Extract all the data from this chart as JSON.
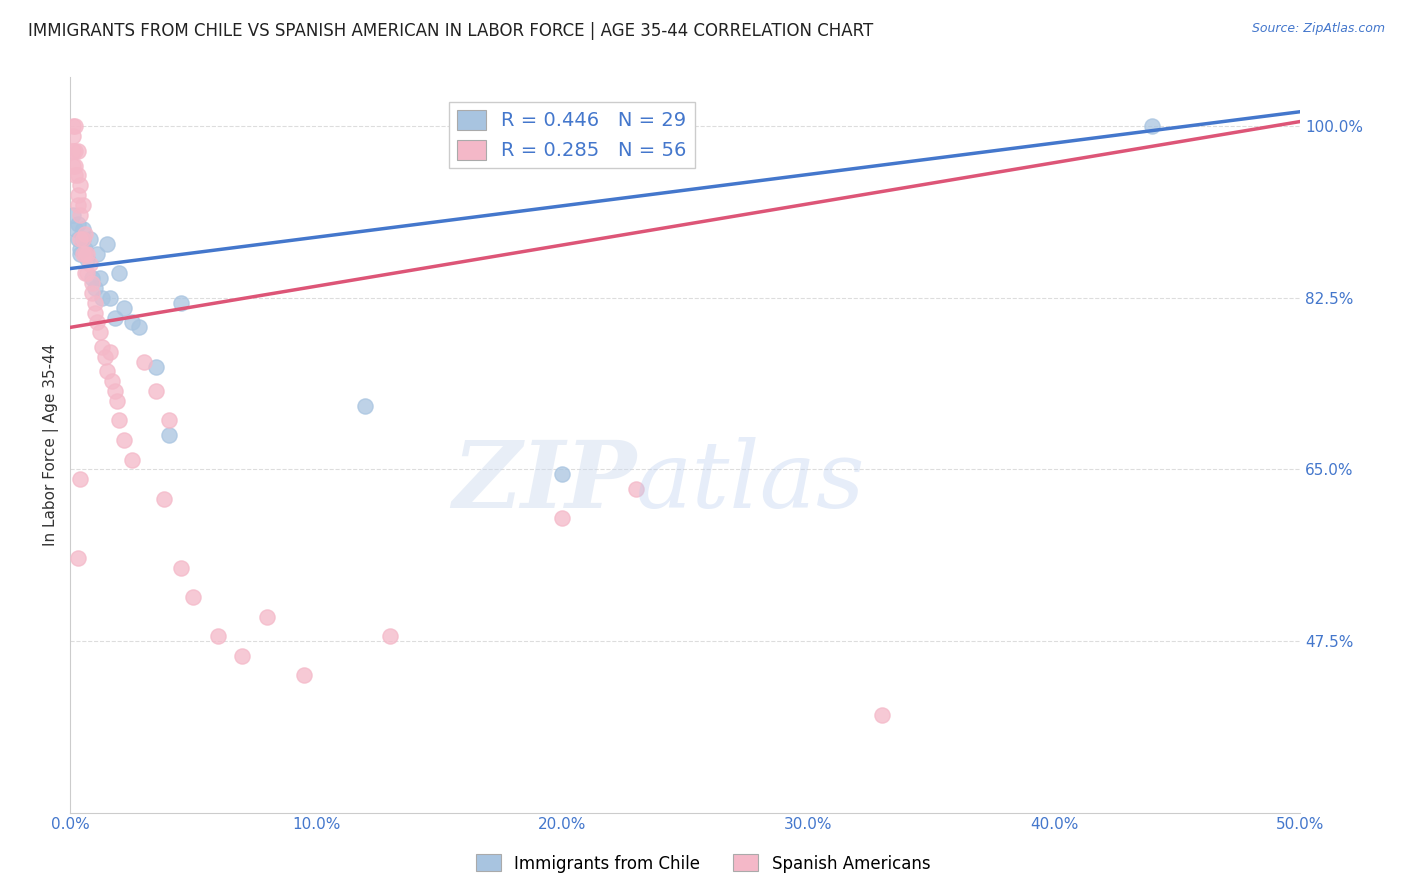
{
  "title": "IMMIGRANTS FROM CHILE VS SPANISH AMERICAN IN LABOR FORCE | AGE 35-44 CORRELATION CHART",
  "source": "Source: ZipAtlas.com",
  "ylabel": "In Labor Force | Age 35-44",
  "xlim": [
    0.0,
    0.5
  ],
  "ylim": [
    0.3,
    1.05
  ],
  "xticks": [
    0.0,
    0.1,
    0.2,
    0.3,
    0.4,
    0.5
  ],
  "xticklabels": [
    "0.0%",
    "10.0%",
    "20.0%",
    "30.0%",
    "40.0%",
    "50.0%"
  ],
  "yticks": [
    0.475,
    0.65,
    0.825,
    1.0
  ],
  "yticklabels": [
    "47.5%",
    "65.0%",
    "82.5%",
    "100.0%"
  ],
  "blue_R": 0.446,
  "blue_N": 29,
  "pink_R": 0.285,
  "pink_N": 56,
  "blue_color": "#a8c4e0",
  "pink_color": "#f4b8c8",
  "blue_line_color": "#4477cc",
  "pink_line_color": "#dd5577",
  "legend_R_color": "#4477cc",
  "blue_scatter_x": [
    0.002,
    0.003,
    0.003,
    0.004,
    0.004,
    0.005,
    0.005,
    0.006,
    0.007,
    0.008,
    0.009,
    0.01,
    0.011,
    0.012,
    0.013,
    0.015,
    0.016,
    0.018,
    0.02,
    0.022,
    0.025,
    0.028,
    0.035,
    0.04,
    0.045,
    0.12,
    0.2,
    0.44,
    0.001
  ],
  "blue_scatter_y": [
    0.895,
    0.9,
    0.885,
    0.875,
    0.87,
    0.885,
    0.895,
    0.875,
    0.865,
    0.885,
    0.845,
    0.835,
    0.87,
    0.845,
    0.825,
    0.88,
    0.825,
    0.805,
    0.85,
    0.815,
    0.8,
    0.795,
    0.755,
    0.685,
    0.82,
    0.715,
    0.645,
    1.0,
    0.91
  ],
  "pink_scatter_x": [
    0.001,
    0.001,
    0.001,
    0.001,
    0.002,
    0.002,
    0.002,
    0.002,
    0.003,
    0.003,
    0.003,
    0.003,
    0.004,
    0.004,
    0.004,
    0.005,
    0.005,
    0.005,
    0.006,
    0.006,
    0.006,
    0.007,
    0.007,
    0.008,
    0.009,
    0.009,
    0.01,
    0.01,
    0.011,
    0.012,
    0.013,
    0.014,
    0.015,
    0.016,
    0.017,
    0.018,
    0.019,
    0.02,
    0.022,
    0.025,
    0.03,
    0.035,
    0.038,
    0.04,
    0.045,
    0.05,
    0.06,
    0.07,
    0.08,
    0.095,
    0.13,
    0.2,
    0.23,
    0.33,
    0.003,
    0.004
  ],
  "pink_scatter_y": [
    1.0,
    0.99,
    0.975,
    0.96,
    1.0,
    0.975,
    0.96,
    0.95,
    0.975,
    0.95,
    0.93,
    0.92,
    0.94,
    0.91,
    0.885,
    0.92,
    0.885,
    0.87,
    0.89,
    0.87,
    0.85,
    0.87,
    0.85,
    0.86,
    0.84,
    0.83,
    0.82,
    0.81,
    0.8,
    0.79,
    0.775,
    0.765,
    0.75,
    0.77,
    0.74,
    0.73,
    0.72,
    0.7,
    0.68,
    0.66,
    0.76,
    0.73,
    0.62,
    0.7,
    0.55,
    0.52,
    0.48,
    0.46,
    0.5,
    0.44,
    0.48,
    0.6,
    0.63,
    0.4,
    0.56,
    0.64
  ],
  "grid_color": "#dddddd",
  "background_color": "#ffffff",
  "title_fontsize": 12,
  "axis_label_fontsize": 11,
  "tick_fontsize": 11,
  "tick_color": "#4477cc",
  "legend_fontsize": 14,
  "blue_line_intercept": 0.855,
  "blue_line_slope": 0.32,
  "pink_line_intercept": 0.795,
  "pink_line_slope": 0.42
}
